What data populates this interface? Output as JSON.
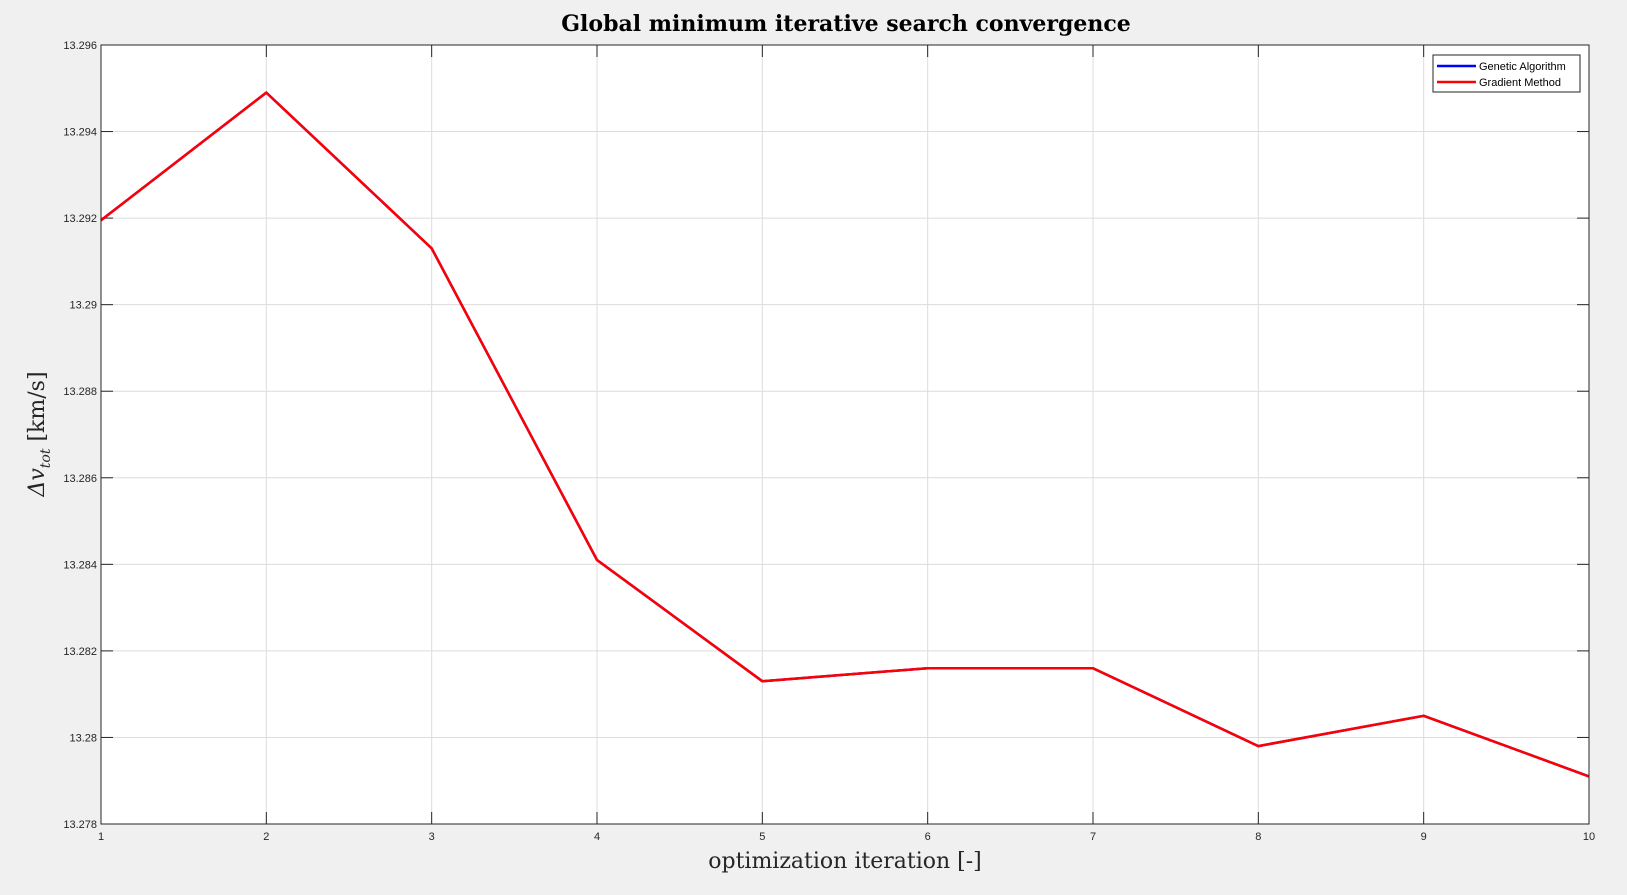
{
  "chart_data": {
    "type": "line",
    "title": "Global minimum iterative search convergence",
    "xlabel": "optimization iteration [-]",
    "ylabel_main": "Δv",
    "ylabel_sub": "tot",
    "ylabel_unit": " [km/s]",
    "xlim": [
      1,
      10
    ],
    "ylim": [
      13.278,
      13.296
    ],
    "xticks": [
      "1",
      "2",
      "3",
      "4",
      "5",
      "6",
      "7",
      "8",
      "9",
      "10"
    ],
    "yticks": [
      "13.278",
      "13.28",
      "13.282",
      "13.284",
      "13.286",
      "13.288",
      "13.29",
      "13.292",
      "13.294",
      "13.296"
    ],
    "grid": true,
    "legend_position": "top-right",
    "x": [
      1,
      2,
      3,
      4,
      5,
      6,
      7,
      8,
      9,
      10
    ],
    "series": [
      {
        "name": "Genetic Algorithm",
        "color": "#0000ff",
        "values": [
          13.29195,
          13.2949,
          13.2913,
          13.2841,
          13.2813,
          13.2816,
          13.2816,
          13.2798,
          13.2805,
          13.2791
        ]
      },
      {
        "name": "Gradient Method",
        "color": "#ff0000",
        "values": [
          13.29195,
          13.2949,
          13.2913,
          13.2841,
          13.2813,
          13.2816,
          13.2816,
          13.2798,
          13.2805,
          13.2791
        ]
      }
    ]
  }
}
